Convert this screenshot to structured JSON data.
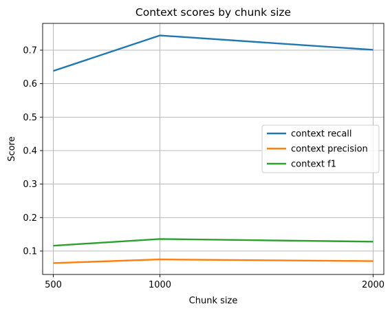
{
  "chart_data": {
    "type": "line",
    "title": "Context scores by chunk size",
    "xlabel": "Chunk size",
    "ylabel": "Score",
    "x": [
      500,
      1000,
      2000
    ],
    "xticks": [
      "500",
      "1000",
      "2000"
    ],
    "yticks": [
      "0.1",
      "0.2",
      "0.3",
      "0.4",
      "0.5",
      "0.6",
      "0.7"
    ],
    "ylim": [
      0.03,
      0.78
    ],
    "xlim": [
      450,
      2050
    ],
    "grid": true,
    "legend_position": "center-right",
    "series": [
      {
        "name": "context recall",
        "color": "#1f77b4",
        "values": [
          0.638,
          0.744,
          0.701
        ]
      },
      {
        "name": "context precision",
        "color": "#ff7f0e",
        "values": [
          0.064,
          0.075,
          0.07
        ]
      },
      {
        "name": "context f1",
        "color": "#2ca02c",
        "values": [
          0.116,
          0.136,
          0.128
        ]
      }
    ]
  }
}
